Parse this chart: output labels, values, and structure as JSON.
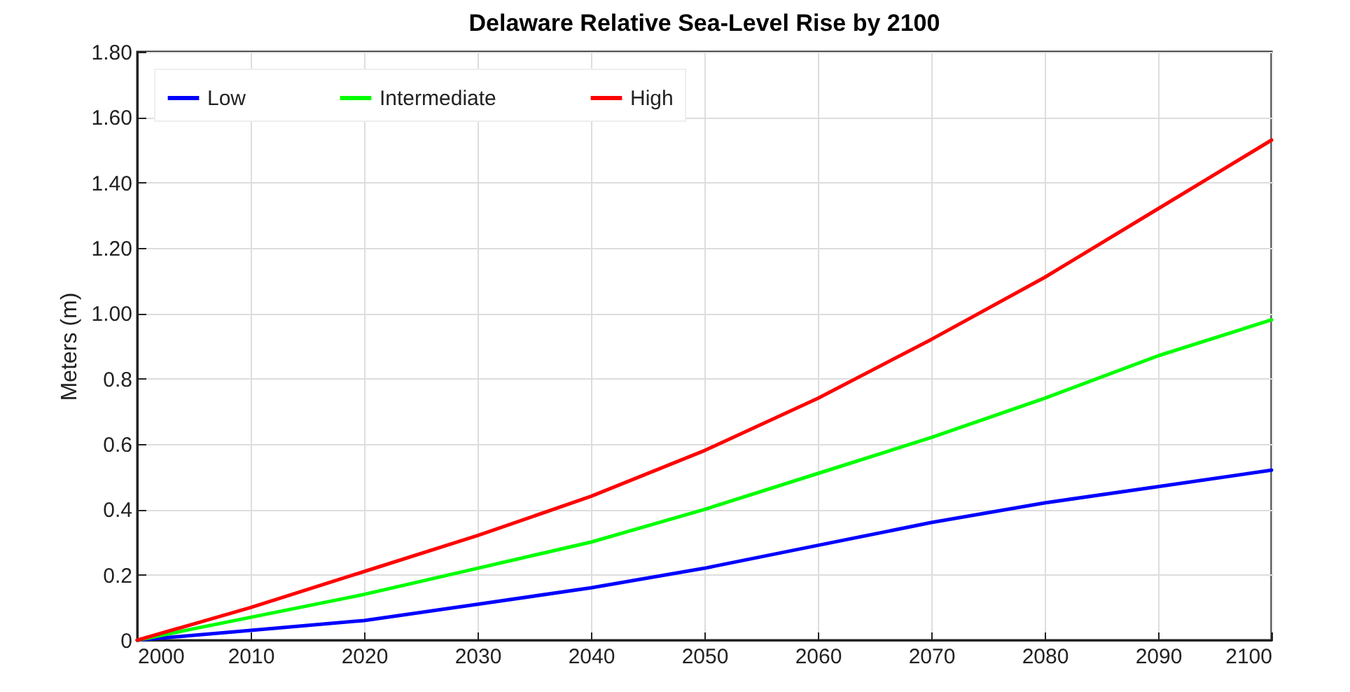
{
  "chart_data": {
    "type": "line",
    "title": "Delaware Relative Sea-Level Rise by 2100",
    "ylabel": "Meters (m)",
    "x": [
      2000,
      2010,
      2020,
      2030,
      2040,
      2050,
      2060,
      2070,
      2080,
      2090,
      2100
    ],
    "series": [
      {
        "name": "Low",
        "color": "#0000ff",
        "values": [
          0,
          0.03,
          0.06,
          0.11,
          0.16,
          0.22,
          0.29,
          0.36,
          0.42,
          0.47,
          0.52
        ]
      },
      {
        "name": "Intermediate",
        "color": "#00ff00",
        "values": [
          0,
          0.07,
          0.14,
          0.22,
          0.3,
          0.4,
          0.51,
          0.62,
          0.74,
          0.87,
          0.98
        ]
      },
      {
        "name": "High",
        "color": "#ff0000",
        "values": [
          0,
          0.1,
          0.21,
          0.32,
          0.44,
          0.58,
          0.74,
          0.92,
          1.11,
          1.32,
          1.53
        ]
      }
    ],
    "xlim": [
      2000,
      2100
    ],
    "xticks": [
      2000,
      2010,
      2020,
      2030,
      2040,
      2050,
      2060,
      2070,
      2080,
      2090,
      2100
    ],
    "ylim": [
      0,
      1.8
    ],
    "yticks": [
      0,
      {
        "value": 0.2,
        "label": "0.2"
      },
      {
        "value": 0.4,
        "label": "0.4"
      },
      {
        "value": 0.6,
        "label": "0.6"
      },
      {
        "value": 0.8,
        "label": "0.8"
      },
      {
        "value": 1,
        "label": "1.00"
      },
      {
        "value": 1.2,
        "label": "1.20"
      },
      {
        "value": 1.4,
        "label": "1.40"
      },
      {
        "value": 1.6,
        "label": "1.60"
      },
      {
        "value": 1.8,
        "label": "1.80"
      }
    ],
    "grid": true,
    "legend": "top left",
    "marker": "none",
    "line_style": "solid"
  }
}
